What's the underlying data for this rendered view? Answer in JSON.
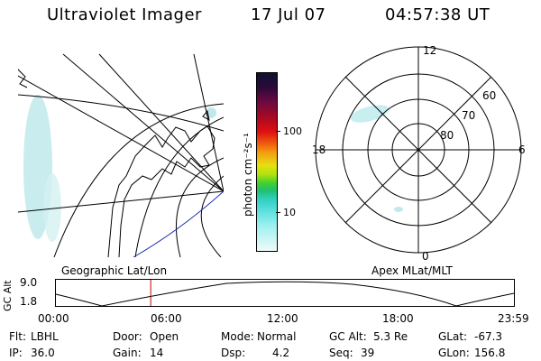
{
  "header": {
    "title": "Ultraviolet Imager",
    "date": "17 Jul 07",
    "time": "04:57:38 UT"
  },
  "colorbar": {
    "label": "photon cm⁻²s⁻¹",
    "ticks": [
      "100",
      "10"
    ]
  },
  "polar": {
    "lat_labels": [
      "60",
      "70",
      "80"
    ],
    "mlt_labels": [
      "12",
      "18",
      "6",
      "0"
    ]
  },
  "strip": {
    "left_title": "Geographic Lat/Lon",
    "right_title": "Apex MLat/MLT",
    "ylabel": "GC Alt",
    "yticks": [
      "9.0",
      "1.8"
    ],
    "xticks": [
      "00:00",
      "06:00",
      "12:00",
      "18:00",
      "23:59"
    ],
    "current_time_fraction": 0.207
  },
  "info": {
    "row1": [
      {
        "key": "Flt:",
        "value": "LBHL"
      },
      {
        "key": "Door:",
        "value": "Open"
      },
      {
        "key": "Mode:",
        "value": "Normal"
      },
      {
        "key": "GC Alt:",
        "value": "5.3 Re"
      },
      {
        "key": "GLat:",
        "value": "-67.3"
      }
    ],
    "row2": [
      {
        "key": "IP:",
        "value": "36.0"
      },
      {
        "key": "Gain:",
        "value": "14"
      },
      {
        "key": "Dsp:",
        "value": "4.2"
      },
      {
        "key": "Seq:",
        "value": "39"
      },
      {
        "key": "GLon:",
        "value": "156.8"
      }
    ]
  }
}
